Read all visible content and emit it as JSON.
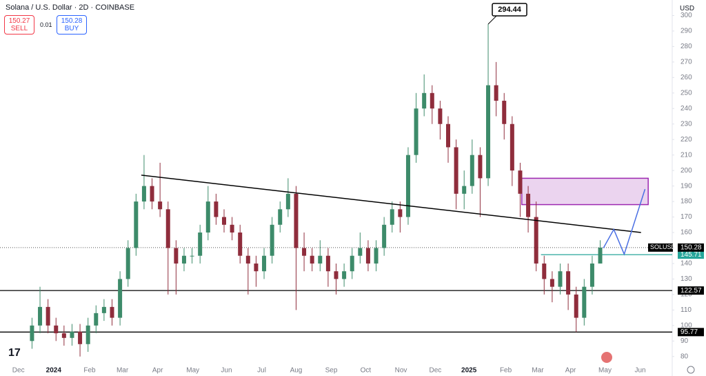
{
  "header": {
    "title": "Solana / U.S. Dollar · 2D · COINBASE",
    "sell": {
      "price": 150.27,
      "label": "SELL"
    },
    "spread": 0.01,
    "buy": {
      "price": 150.28,
      "label": "BUY"
    }
  },
  "chart_data": {
    "type": "candlestick",
    "currency": "USD",
    "series": [
      {
        "name": "SOLUSD",
        "up_color": "#3d8b6a",
        "down_color": "#8f2d3c",
        "open": [
          90,
          100,
          112,
          100,
          95,
          92,
          96,
          88,
          100,
          108,
          112,
          105,
          130,
          150,
          180,
          190,
          180,
          175,
          150,
          140,
          145,
          145,
          160,
          180,
          170,
          165,
          160,
          145,
          140,
          135,
          145,
          165,
          175,
          185,
          150,
          145,
          140,
          145,
          135,
          130,
          135,
          145,
          150,
          140,
          150,
          165,
          175,
          170,
          210,
          240,
          250,
          240,
          230,
          215,
          185,
          190,
          210,
          195,
          255,
          245,
          230,
          200,
          185,
          170,
          140,
          130,
          125,
          135,
          120,
          105,
          125,
          140
        ],
        "high": [
          105,
          125,
          117,
          105,
          100,
          101,
          101,
          105,
          113,
          117,
          117,
          135,
          155,
          185,
          210,
          195,
          205,
          180,
          155,
          150,
          150,
          165,
          190,
          185,
          175,
          170,
          165,
          150,
          145,
          150,
          170,
          180,
          195,
          190,
          160,
          150,
          155,
          150,
          140,
          140,
          150,
          160,
          155,
          155,
          170,
          180,
          180,
          215,
          250,
          262,
          255,
          245,
          235,
          220,
          200,
          220,
          215,
          294.44,
          270,
          250,
          235,
          205,
          190,
          180,
          145,
          135,
          140,
          140,
          125,
          130,
          145,
          155
        ],
        "low": [
          85,
          95,
          95,
          90,
          87,
          87,
          80,
          83,
          95,
          103,
          100,
          100,
          125,
          145,
          175,
          175,
          170,
          120,
          120,
          135,
          140,
          140,
          155,
          165,
          160,
          155,
          140,
          120,
          125,
          130,
          140,
          160,
          170,
          110,
          135,
          135,
          135,
          125,
          120,
          125,
          130,
          140,
          135,
          135,
          145,
          160,
          160,
          165,
          205,
          235,
          230,
          220,
          205,
          175,
          175,
          185,
          170,
          190,
          235,
          220,
          190,
          170,
          160,
          135,
          120,
          115,
          120,
          110,
          95.77,
          100,
          120,
          140
        ],
        "close": [
          100,
          112,
          100,
          95,
          92,
          96,
          88,
          100,
          108,
          112,
          105,
          130,
          150,
          180,
          190,
          180,
          175,
          150,
          140,
          145,
          145,
          160,
          180,
          170,
          165,
          160,
          145,
          140,
          135,
          145,
          165,
          175,
          185,
          150,
          145,
          140,
          145,
          135,
          130,
          135,
          145,
          150,
          140,
          150,
          165,
          175,
          170,
          210,
          240,
          250,
          240,
          230,
          215,
          185,
          190,
          210,
          195,
          255,
          245,
          230,
          200,
          185,
          170,
          140,
          130,
          125,
          135,
          120,
          105,
          125,
          140,
          150.28
        ]
      }
    ],
    "xlim": [
      -4,
      80
    ],
    "xticks": [
      {
        "value": -1.7,
        "label": "Dec"
      },
      {
        "value": 2.7,
        "label": "2024"
      },
      {
        "value": 7.2,
        "label": "Feb"
      },
      {
        "value": 11.3,
        "label": "Mar"
      },
      {
        "value": 15.7,
        "label": "Apr"
      },
      {
        "value": 20.1,
        "label": "May"
      },
      {
        "value": 24.3,
        "label": "Jun"
      },
      {
        "value": 28.7,
        "label": "Jul"
      },
      {
        "value": 33,
        "label": "Aug"
      },
      {
        "value": 37.4,
        "label": "Sep"
      },
      {
        "value": 41.7,
        "label": "Oct"
      },
      {
        "value": 46.1,
        "label": "Nov"
      },
      {
        "value": 50.4,
        "label": "Dec"
      },
      {
        "value": 54.6,
        "label": "2025"
      },
      {
        "value": 59.2,
        "label": "Feb"
      },
      {
        "value": 63.2,
        "label": "Mar"
      },
      {
        "value": 67.3,
        "label": "Apr"
      },
      {
        "value": 71.6,
        "label": "May"
      },
      {
        "value": 76,
        "label": "Jun"
      }
    ],
    "ylim": [
      75,
      310
    ],
    "yticks": [
      80,
      90,
      100,
      110,
      120,
      130,
      140,
      150,
      160,
      170,
      180,
      190,
      200,
      210,
      220,
      230,
      240,
      250,
      260,
      270,
      280,
      290,
      300
    ],
    "levels": [
      {
        "value": 122.57,
        "color": "#000000"
      },
      {
        "value": 95.77,
        "color": "#000000"
      },
      {
        "value": 145.71,
        "color": "#26a69a",
        "x_start": 63.6
      }
    ],
    "trendline": {
      "x": [
        13.66,
        76.1
      ],
      "y": [
        197,
        160
      ],
      "color": "#000000"
    },
    "zone": {
      "x": [
        61.2,
        77
      ],
      "y": [
        178,
        195
      ],
      "color": "#9c27b0"
    },
    "projection": {
      "x": [
        71.4,
        72.7,
        74,
        76.6
      ],
      "y": [
        150,
        162,
        146,
        188
      ],
      "color": "#4a6fe3"
    }
  }
}
